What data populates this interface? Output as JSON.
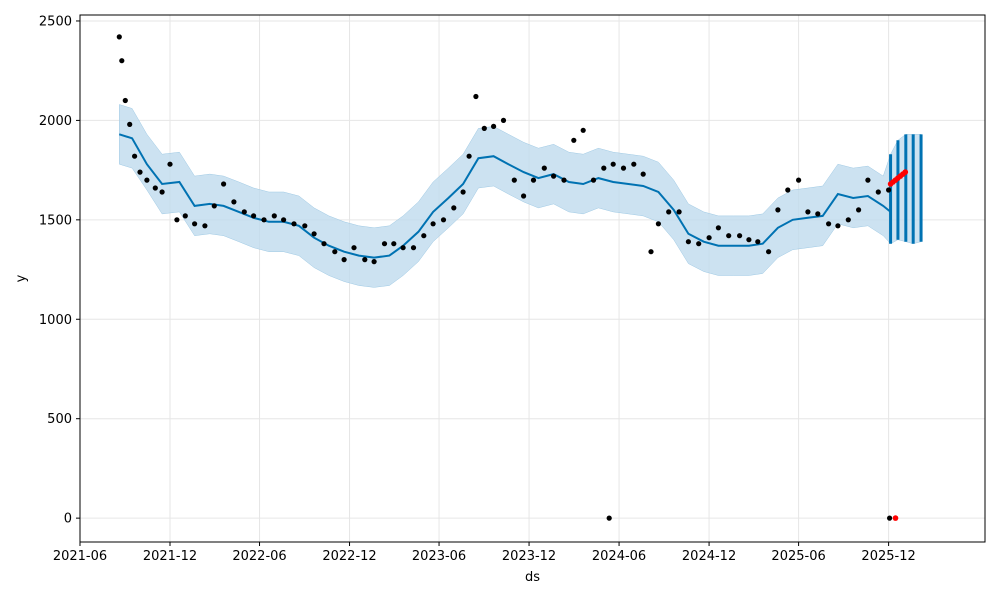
{
  "chart_data": {
    "type": "line",
    "xlabel": "ds",
    "ylabel": "y",
    "xlim": [
      "2021-06-01",
      "2026-06-15"
    ],
    "ylim": [
      -120,
      2530
    ],
    "grid": true,
    "x_ticks": [
      "2021-06",
      "2021-12",
      "2022-06",
      "2022-12",
      "2023-06",
      "2023-12",
      "2024-06",
      "2024-12",
      "2025-06",
      "2025-12"
    ],
    "y_ticks": [
      0,
      500,
      1000,
      1500,
      2000,
      2500
    ],
    "colors": {
      "observed": "#000000",
      "forecast_line": "#0072B2",
      "uncertainty_band": "#BFDBEE",
      "highlight": "#FF0000",
      "grid": "#E6E6E6"
    },
    "series": [
      {
        "type": "band",
        "x": [
          "2021-08-20",
          "2021-09-15",
          "2021-10-15",
          "2021-11-15",
          "2021-12-20",
          "2022-01-20",
          "2022-02-20",
          "2022-03-20",
          "2022-04-20",
          "2022-05-20",
          "2022-06-20",
          "2022-07-20",
          "2022-08-20",
          "2022-09-20",
          "2022-10-20",
          "2022-11-20",
          "2022-12-20",
          "2023-01-20",
          "2023-02-20",
          "2023-03-20",
          "2023-04-20",
          "2023-05-20",
          "2023-06-20",
          "2023-07-20",
          "2023-08-20",
          "2023-09-20",
          "2023-10-20",
          "2023-11-20",
          "2023-12-20",
          "2024-01-20",
          "2024-02-20",
          "2024-03-20",
          "2024-04-20",
          "2024-05-20",
          "2024-06-20",
          "2024-07-20",
          "2024-08-20",
          "2024-09-20",
          "2024-10-20",
          "2024-11-20",
          "2024-12-20",
          "2025-01-20",
          "2025-02-20",
          "2025-03-20",
          "2025-04-20",
          "2025-05-20",
          "2025-06-20",
          "2025-07-20",
          "2025-08-20",
          "2025-09-20",
          "2025-10-20",
          "2025-11-20",
          "2025-12-05",
          "2025-12-20",
          "2026-01-05",
          "2026-01-20",
          "2026-02-05"
        ],
        "upper": [
          2080,
          2060,
          1930,
          1830,
          1840,
          1720,
          1730,
          1720,
          1690,
          1660,
          1640,
          1640,
          1620,
          1560,
          1520,
          1490,
          1470,
          1460,
          1470,
          1520,
          1590,
          1690,
          1760,
          1830,
          1960,
          1970,
          1930,
          1890,
          1860,
          1880,
          1840,
          1830,
          1860,
          1840,
          1830,
          1820,
          1790,
          1700,
          1580,
          1540,
          1520,
          1520,
          1520,
          1530,
          1610,
          1650,
          1660,
          1670,
          1780,
          1760,
          1770,
          1720,
          1830,
          1900,
          1930,
          1930,
          1930
        ],
        "lower": [
          1780,
          1760,
          1650,
          1530,
          1540,
          1420,
          1430,
          1420,
          1390,
          1360,
          1340,
          1340,
          1320,
          1260,
          1220,
          1190,
          1170,
          1160,
          1170,
          1220,
          1290,
          1390,
          1460,
          1530,
          1660,
          1670,
          1630,
          1590,
          1560,
          1580,
          1540,
          1530,
          1560,
          1540,
          1530,
          1520,
          1490,
          1400,
          1280,
          1240,
          1220,
          1220,
          1220,
          1230,
          1310,
          1350,
          1360,
          1370,
          1480,
          1460,
          1470,
          1420,
          1380,
          1400,
          1390,
          1380,
          1390
        ]
      },
      {
        "type": "line",
        "x": [
          "2021-08-20",
          "2021-09-15",
          "2021-10-15",
          "2021-11-15",
          "2021-12-20",
          "2022-01-20",
          "2022-02-20",
          "2022-03-20",
          "2022-04-20",
          "2022-05-20",
          "2022-06-20",
          "2022-07-20",
          "2022-08-20",
          "2022-09-20",
          "2022-10-20",
          "2022-11-20",
          "2022-12-20",
          "2023-01-20",
          "2023-02-20",
          "2023-03-20",
          "2023-04-20",
          "2023-05-20",
          "2023-06-20",
          "2023-07-20",
          "2023-08-20",
          "2023-09-20",
          "2023-10-20",
          "2023-11-20",
          "2023-12-20",
          "2024-01-20",
          "2024-02-20",
          "2024-03-20",
          "2024-04-20",
          "2024-05-20",
          "2024-06-20",
          "2024-07-20",
          "2024-08-20",
          "2024-09-20",
          "2024-10-20",
          "2024-11-20",
          "2024-12-20",
          "2025-01-20",
          "2025-02-20",
          "2025-03-20",
          "2025-04-20",
          "2025-05-20",
          "2025-06-20",
          "2025-07-20",
          "2025-08-20",
          "2025-09-20",
          "2025-10-20",
          "2025-11-20",
          "2025-12-05"
        ],
        "y": [
          1930,
          1910,
          1780,
          1680,
          1690,
          1570,
          1580,
          1570,
          1540,
          1510,
          1490,
          1490,
          1470,
          1410,
          1370,
          1340,
          1320,
          1310,
          1320,
          1370,
          1440,
          1540,
          1610,
          1680,
          1810,
          1820,
          1780,
          1740,
          1710,
          1730,
          1690,
          1680,
          1710,
          1690,
          1680,
          1670,
          1640,
          1550,
          1430,
          1390,
          1370,
          1370,
          1370,
          1380,
          1460,
          1500,
          1510,
          1520,
          1630,
          1610,
          1620,
          1570,
          1540
        ]
      },
      {
        "type": "scatter",
        "x": [
          "2021-08-20",
          "2021-08-25",
          "2021-09-01",
          "2021-09-10",
          "2021-09-20",
          "2021-10-01",
          "2021-10-15",
          "2021-11-01",
          "2021-11-15",
          "2021-12-01",
          "2021-12-15",
          "2022-01-01",
          "2022-01-20",
          "2022-02-10",
          "2022-03-01",
          "2022-03-20",
          "2022-04-10",
          "2022-05-01",
          "2022-05-20",
          "2022-06-10",
          "2022-07-01",
          "2022-07-20",
          "2022-08-10",
          "2022-09-01",
          "2022-09-20",
          "2022-10-10",
          "2022-11-01",
          "2022-11-20",
          "2022-12-10",
          "2023-01-01",
          "2023-01-20",
          "2023-02-10",
          "2023-03-01",
          "2023-03-20",
          "2023-04-10",
          "2023-05-01",
          "2023-05-20",
          "2023-06-10",
          "2023-07-01",
          "2023-07-20",
          "2023-08-01",
          "2023-08-15",
          "2023-09-01",
          "2023-09-20",
          "2023-10-10",
          "2023-11-01",
          "2023-11-20",
          "2023-12-10",
          "2024-01-01",
          "2024-01-20",
          "2024-02-10",
          "2024-03-01",
          "2024-03-20",
          "2024-04-10",
          "2024-05-01",
          "2024-05-12",
          "2024-05-20",
          "2024-06-10",
          "2024-07-01",
          "2024-07-20",
          "2024-08-05",
          "2024-08-20",
          "2024-09-10",
          "2024-10-01",
          "2024-10-20",
          "2024-11-10",
          "2024-12-01",
          "2024-12-20",
          "2025-01-10",
          "2025-02-01",
          "2025-02-20",
          "2025-03-10",
          "2025-04-01",
          "2025-04-20",
          "2025-05-10",
          "2025-06-01",
          "2025-06-20",
          "2025-07-10",
          "2025-08-01",
          "2025-08-20",
          "2025-09-10",
          "2025-10-01",
          "2025-10-20",
          "2025-11-10",
          "2025-12-01",
          "2025-12-03"
        ],
        "y": [
          2420,
          2300,
          2100,
          1980,
          1820,
          1740,
          1700,
          1660,
          1640,
          1780,
          1500,
          1520,
          1480,
          1470,
          1570,
          1680,
          1590,
          1540,
          1520,
          1500,
          1520,
          1500,
          1480,
          1470,
          1430,
          1380,
          1340,
          1300,
          1360,
          1300,
          1290,
          1380,
          1380,
          1360,
          1360,
          1420,
          1480,
          1500,
          1560,
          1640,
          1820,
          2120,
          1960,
          1970,
          2000,
          1700,
          1620,
          1700,
          1760,
          1720,
          1700,
          1900,
          1950,
          1700,
          1760,
          0,
          1780,
          1760,
          1780,
          1730,
          1340,
          1480,
          1540,
          1540,
          1390,
          1380,
          1410,
          1460,
          1420,
          1420,
          1400,
          1390,
          1340,
          1550,
          1650,
          1700,
          1540,
          1530,
          1480,
          1470,
          1500,
          1550,
          1700,
          1640,
          1650,
          0
        ]
      },
      {
        "type": "scatter",
        "name": "highlight",
        "x": [
          "2025-12-05",
          "2025-12-10",
          "2025-12-15",
          "2025-12-20",
          "2025-12-25",
          "2025-12-30",
          "2026-01-04",
          "2025-12-15"
        ],
        "y": [
          1680,
          1690,
          1700,
          1710,
          1720,
          1730,
          1740,
          0
        ]
      }
    ]
  }
}
